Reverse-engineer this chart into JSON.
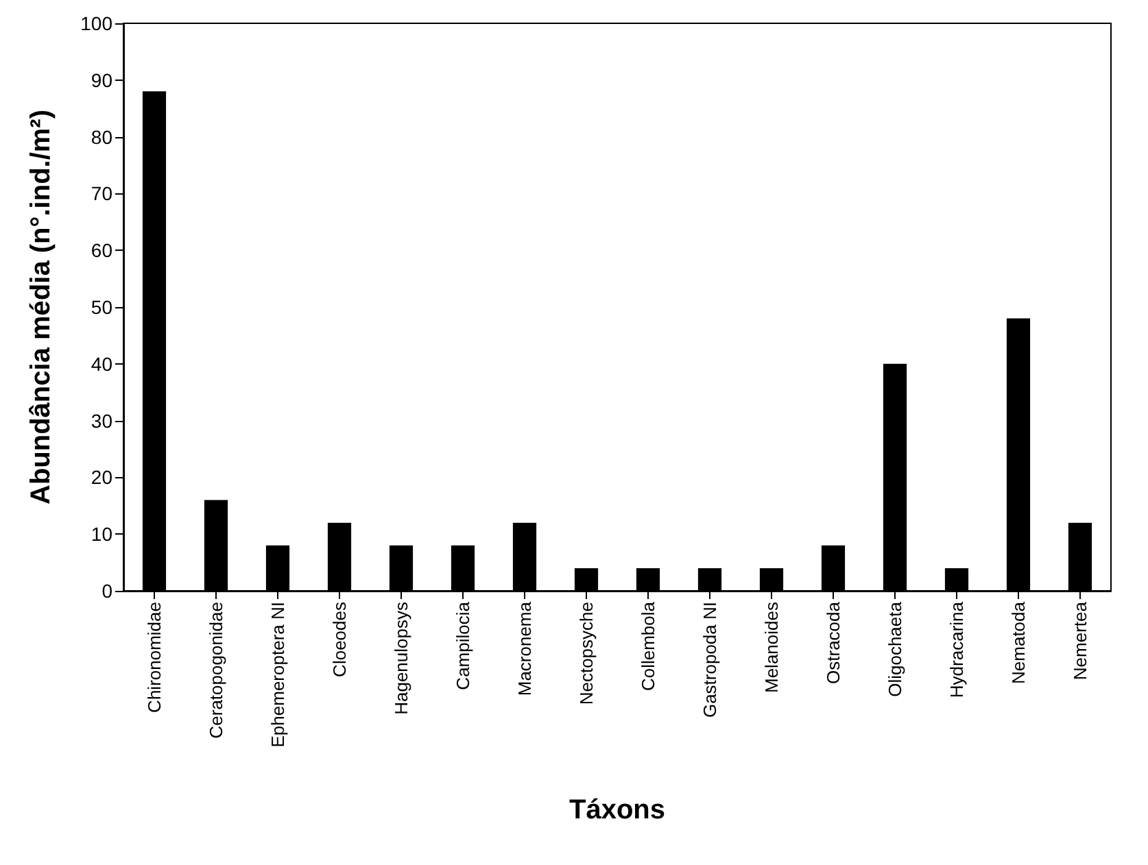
{
  "chart_data": {
    "type": "bar",
    "xlabel": "Táxons",
    "ylabel": "Abundância média (n°.ind./m²)",
    "categories": [
      "Chironomidae",
      "Ceratopogonidae",
      "Ephemeroptera NI",
      "Cloeodes",
      "Hagenulopsys",
      "Campilocia",
      "Macronema",
      "Nectopsyche",
      "Collembola",
      "Gastropoda NI",
      "Melanoides",
      "Ostracoda",
      "Oligochaeta",
      "Hydracarina",
      "Nematoda",
      "Nemertea"
    ],
    "values": [
      88,
      16,
      8,
      12,
      8,
      8,
      12,
      4,
      4,
      4,
      4,
      8,
      40,
      4,
      48,
      12
    ],
    "color": "#000000",
    "ylim": [
      0,
      100
    ],
    "yticks": [
      0,
      10,
      20,
      30,
      40,
      50,
      60,
      70,
      80,
      90,
      100
    ],
    "grid": false
  }
}
